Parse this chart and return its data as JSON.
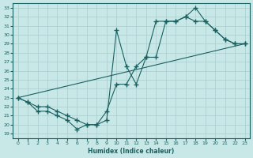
{
  "xlabel": "Humidex (Indice chaleur)",
  "xlim": [
    -0.5,
    23.5
  ],
  "ylim": [
    18.5,
    33.5
  ],
  "yticks": [
    19,
    20,
    21,
    22,
    23,
    24,
    25,
    26,
    27,
    28,
    29,
    30,
    31,
    32,
    33
  ],
  "xticks": [
    0,
    1,
    2,
    3,
    4,
    5,
    6,
    7,
    8,
    9,
    10,
    11,
    12,
    13,
    14,
    15,
    16,
    17,
    18,
    19,
    20,
    21,
    22,
    23
  ],
  "bg_color": "#c8e8e8",
  "line_color": "#1a6060",
  "grid_color": "#aacccc",
  "line1_x": [
    0,
    1,
    2,
    3,
    4,
    5,
    6,
    7,
    8,
    9,
    10,
    11,
    12,
    13,
    14,
    15,
    16,
    17,
    18,
    19,
    20,
    21,
    22,
    23
  ],
  "line1_y": [
    23,
    22.5,
    21.5,
    21.5,
    21,
    20.5,
    19.5,
    20,
    20,
    20.5,
    30.5,
    26.5,
    24.5,
    27.5,
    31.5,
    31.5,
    31.5,
    32,
    33,
    31.5,
    30.5,
    29.5,
    29,
    29
  ],
  "line2_x": [
    0,
    1,
    2,
    3,
    4,
    5,
    6,
    7,
    8,
    9,
    10,
    11,
    12,
    13,
    14,
    15,
    16,
    17,
    18,
    19,
    20,
    21,
    22,
    23
  ],
  "line2_y": [
    23,
    22.5,
    22,
    22,
    21.5,
    21,
    20.5,
    20,
    20,
    21.5,
    24.5,
    24.5,
    26.5,
    27.5,
    27.5,
    31.5,
    31.5,
    32,
    31.5,
    31.5,
    30.5,
    29.5,
    29,
    29
  ],
  "line3_x": [
    0,
    23
  ],
  "line3_y": [
    23,
    29
  ],
  "marker_size": 2,
  "linewidth": 0.8
}
